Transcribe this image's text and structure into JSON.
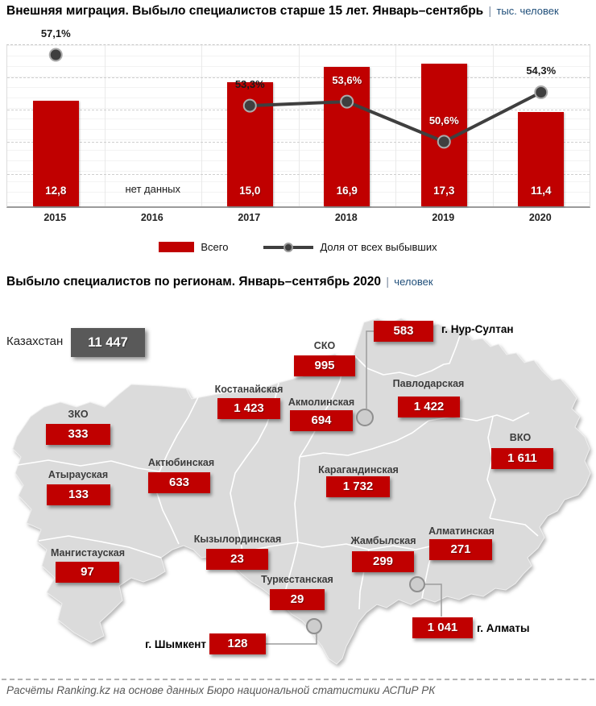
{
  "page": {
    "separator": "|",
    "footer": "Расчёты Ranking.kz на основе данных Бюро национальной статистики АСПиР РК"
  },
  "colors": {
    "accent_red": "#C00000",
    "line_gray": "#3F3F3F",
    "country_box_gray": "#595959",
    "unit_navy": "#1F4E79",
    "map_fill": "#DBDBDB"
  },
  "chart_data": [
    {
      "type": "bar",
      "title": "Внешняя миграция. Выбыло специалистов старше 15 лет.  Январь–сентябрь",
      "unit": "тыс. человек",
      "categories": [
        "2015",
        "2016",
        "2017",
        "2018",
        "2019",
        "2020"
      ],
      "no_data_label": "нет данных",
      "ylim": [
        0,
        19.5
      ],
      "grid": true,
      "legend_position": "bottom",
      "series": [
        {
          "name": "Всего",
          "type": "bar",
          "color": "#C00000",
          "values": [
            12.8,
            null,
            15.0,
            16.9,
            17.3,
            11.4
          ],
          "labels": [
            "12,8",
            "",
            "15,0",
            "16,9",
            "17,3",
            "11,4"
          ]
        },
        {
          "name": "Доля от всех выбывших",
          "type": "line",
          "color": "#3F3F3F",
          "values": [
            57.1,
            null,
            53.3,
            53.6,
            50.6,
            54.3
          ],
          "labels": [
            "57,1%",
            "",
            "53,3%",
            "53,6%",
            "50,6%",
            "54,3%"
          ],
          "label_colors": [
            "#1a1a1a",
            null,
            "#1a1a1a",
            "#ffffff",
            "#ffffff",
            "#1a1a1a"
          ]
        }
      ]
    },
    {
      "type": "map",
      "title": "Выбыло специалистов по регионам. Январь–сентябрь 2020",
      "unit": "человек",
      "country": {
        "name": "Казахстан",
        "value": 11447,
        "display": "11 447"
      },
      "regions": [
        {
          "name": "г. Нур-Султан",
          "value": 583,
          "display": "583"
        },
        {
          "name": "СКО",
          "value": 995,
          "display": "995"
        },
        {
          "name": "Костанайская",
          "value": 1423,
          "display": "1 423"
        },
        {
          "name": "Акмолинская",
          "value": 694,
          "display": "694"
        },
        {
          "name": "Павлодарская",
          "value": 1422,
          "display": "1 422"
        },
        {
          "name": "ЗКО",
          "value": 333,
          "display": "333"
        },
        {
          "name": "ВКО",
          "value": 1611,
          "display": "1 611"
        },
        {
          "name": "Актюбинская",
          "value": 633,
          "display": "633"
        },
        {
          "name": "Карагандинская",
          "value": 1732,
          "display": "1 732"
        },
        {
          "name": "Атырауская",
          "value": 133,
          "display": "133"
        },
        {
          "name": "Кызылординская",
          "value": 23,
          "display": "23"
        },
        {
          "name": "Жамбылская",
          "value": 299,
          "display": "299"
        },
        {
          "name": "Алматинская",
          "value": 271,
          "display": "271"
        },
        {
          "name": "Мангистауская",
          "value": 97,
          "display": "97"
        },
        {
          "name": "Туркестанская",
          "value": 29,
          "display": "29"
        },
        {
          "name": "г. Шымкент",
          "value": 128,
          "display": "128"
        },
        {
          "name": "г. Алматы",
          "value": 1041,
          "display": "1 041"
        }
      ]
    }
  ]
}
